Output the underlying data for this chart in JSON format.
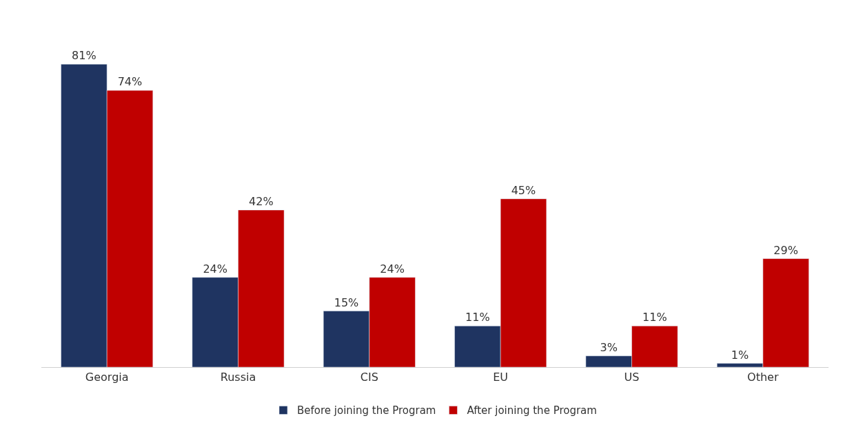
{
  "chart_data": {
    "type": "bar",
    "categories": [
      "Georgia",
      "Russia",
      "CIS",
      "EU",
      "US",
      "Other"
    ],
    "series": [
      {
        "name": "Before joining the Program",
        "color": "#1f3461",
        "values": [
          81,
          24,
          15,
          11,
          3,
          1
        ],
        "value_labels": [
          "81%",
          "24%",
          "15%",
          "11%",
          "3%",
          "1%"
        ]
      },
      {
        "name": "After joining the Program",
        "color": "#c00000",
        "values": [
          74,
          42,
          24,
          45,
          11,
          29
        ],
        "value_labels": [
          "74%",
          "42%",
          "24%",
          "45%",
          "11%",
          "29%"
        ]
      }
    ],
    "legend": "bottom"
  }
}
